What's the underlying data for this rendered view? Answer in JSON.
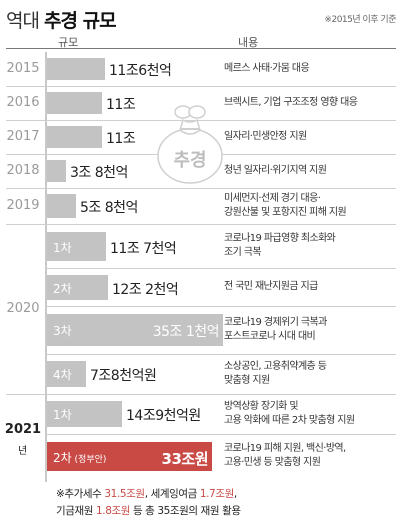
{
  "header": {
    "title_prefix": "역대",
    "title_main": "추경 규모",
    "note": "※2015년 이후 기준",
    "col_size": "규모",
    "col_content": "내용"
  },
  "icon": {
    "label": "추경"
  },
  "chart_data": {
    "type": "bar",
    "orientation": "horizontal",
    "unit": "조원",
    "rows": [
      {
        "year": "2015",
        "round": "",
        "label": "11조6천억",
        "value": 11.6,
        "desc": [
          "메르스 사태·가뭄 대응"
        ]
      },
      {
        "year": "2016",
        "round": "",
        "label": "11조",
        "value": 11.0,
        "desc": [
          "브렉시트, 기업 구조조정 영향 대응"
        ]
      },
      {
        "year": "2017",
        "round": "",
        "label": "11조",
        "value": 11.0,
        "desc": [
          "일자리·민생안정 지원"
        ]
      },
      {
        "year": "2018",
        "round": "",
        "label": "3조 8천억",
        "value": 3.8,
        "desc": [
          "청년 일자리·위기지역 지원"
        ]
      },
      {
        "year": "2019",
        "round": "",
        "label": "5조 8천억",
        "value": 5.8,
        "desc": [
          "미세먼지·선제 경기 대응·",
          "강원산불 및 포항지진 피해 지원"
        ]
      },
      {
        "year": "2020",
        "round": "1차",
        "label": "11조 7천억",
        "value": 11.7,
        "desc": [
          "코로나19 파급영향 최소화와",
          "조기 극복"
        ]
      },
      {
        "year": "2020",
        "round": "2차",
        "label": "12조 2천억",
        "value": 12.2,
        "desc": [
          "전 국민 재난지원금 지급"
        ]
      },
      {
        "year": "2020",
        "round": "3차",
        "label": "35조 1천억",
        "value": 35.1,
        "desc": [
          "코로나19 경제위기 극복과",
          "포스트코로나 시대 대비"
        ]
      },
      {
        "year": "2020",
        "round": "4차",
        "label": "7조8천억원",
        "value": 7.8,
        "desc": [
          "소상공인, 고용취약계층 등",
          "맞춤형 지원"
        ]
      },
      {
        "year": "2021",
        "round": "1차",
        "label": "14조9천억원",
        "value": 14.9,
        "desc": [
          "방역상황 장기화 및",
          "고용 악화에 따른 2차 맞춤형 지원"
        ]
      },
      {
        "year": "2021",
        "round": "2차",
        "round_note": "(정부안)",
        "label": "33조원",
        "value": 33.0,
        "highlight": true,
        "desc": [
          "코로나19 피해 지원, 백신·방역,",
          "고용·민생 등 맞춤형 지원"
        ]
      }
    ],
    "year_labels": [
      {
        "text": "2015"
      },
      {
        "text": "2016"
      },
      {
        "text": "2017"
      },
      {
        "text": "2018"
      },
      {
        "text": "2019"
      },
      {
        "text": "2020"
      },
      {
        "text": "2021",
        "suffix": "년"
      }
    ]
  },
  "footnote": {
    "line1": [
      "※추가세수 ",
      "31.5조원",
      ", 세계잉여금 ",
      "1.7조원",
      ","
    ],
    "line2": [
      "기금재원 ",
      "1.8조원",
      " 등 총 35조원의 재원 활용"
    ]
  },
  "colors": {
    "bar": "#c3c3c3",
    "highlight": "#c94a45",
    "year_grey": "#9a9a9a"
  }
}
